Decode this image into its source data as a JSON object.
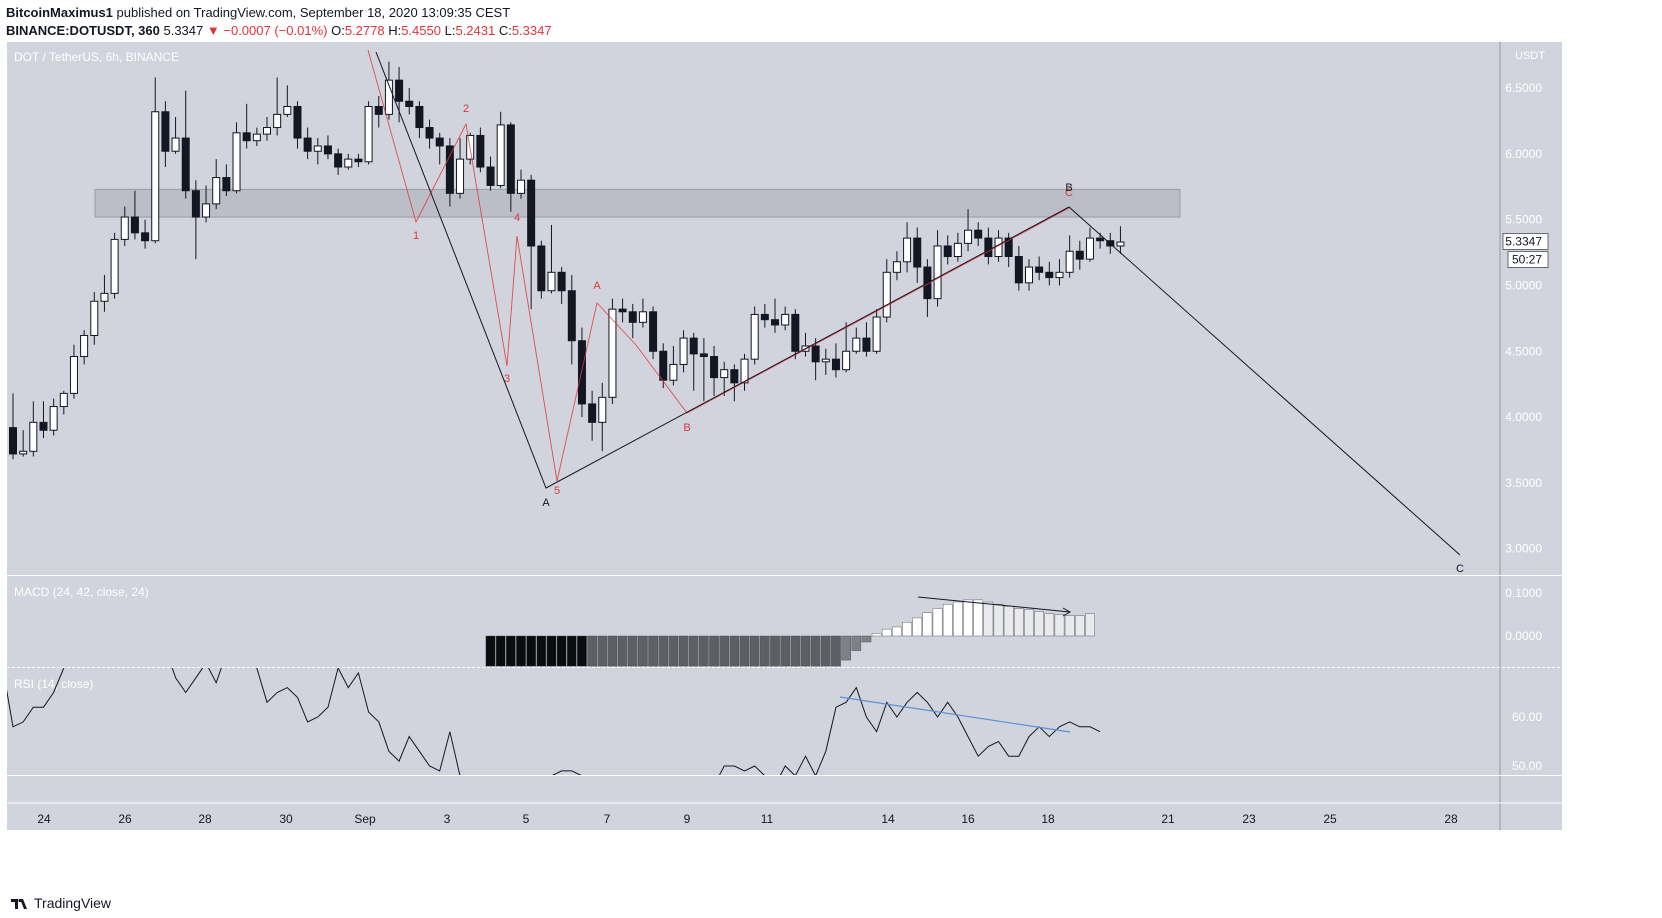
{
  "header": {
    "user": "BitcoinMaximus1",
    "published_text": "published on TradingView.com, September 18, 2020 13:09:35 CEST",
    "symbol": "BINANCE:DOTUSDT, 360",
    "last": "5.3347",
    "arrow": "▼",
    "change": "−0.0007 (−0.01%)",
    "o_label": "O:",
    "o_val": "5.2778",
    "h_label": "H:",
    "h_val": "5.4550",
    "l_label": "L:",
    "l_val": "5.2431",
    "c_label": "C:",
    "c_val": "5.3347"
  },
  "footer": {
    "brand": "TradingView"
  },
  "colors": {
    "background": "#d1d4dc",
    "candle_up": "#ffffff",
    "candle_down": "#131722",
    "wave_red": "#e0343c",
    "rsi_trend": "#5b8fe0"
  },
  "chart_data": {
    "type": "candlestick",
    "title": "DOT / TetherUS, 6h, BINANCE",
    "y_unit": "USDT",
    "x_ticks": [
      "24",
      "26",
      "28",
      "30",
      "Sep",
      "3",
      "5",
      "7",
      "9",
      "11",
      "14",
      "16",
      "18",
      "21",
      "23",
      "25",
      "28"
    ],
    "ylim": [
      2.8,
      6.85
    ],
    "y_ticks": [
      "6.5000",
      "6.0000",
      "5.5000",
      "5.0000",
      "4.5000",
      "4.0000",
      "3.5000",
      "3.0000"
    ],
    "price_label": "5.3347",
    "countdown": "50:27",
    "resistance_zone": [
      5.52,
      5.73
    ],
    "candles": [
      [
        3.92,
        3.72,
        4.18,
        3.68
      ],
      [
        3.72,
        3.74,
        3.9,
        3.7
      ],
      [
        3.74,
        3.96,
        4.12,
        3.7
      ],
      [
        3.96,
        3.9,
        4.12,
        3.84
      ],
      [
        3.9,
        4.08,
        4.14,
        3.86
      ],
      [
        4.08,
        4.18,
        4.2,
        4.02
      ],
      [
        4.18,
        4.46,
        4.55,
        4.14
      ],
      [
        4.46,
        4.62,
        4.66,
        4.4
      ],
      [
        4.62,
        4.88,
        4.95,
        4.55
      ],
      [
        4.88,
        4.94,
        5.08,
        4.8
      ],
      [
        4.94,
        5.35,
        5.4,
        4.9
      ],
      [
        5.35,
        5.52,
        5.6,
        5.3
      ],
      [
        5.52,
        5.4,
        5.72,
        5.35
      ],
      [
        5.4,
        5.34,
        5.5,
        5.28
      ],
      [
        5.34,
        6.32,
        6.58,
        5.32
      ],
      [
        6.32,
        6.02,
        6.4,
        5.9
      ],
      [
        6.02,
        6.12,
        6.28,
        6.0
      ],
      [
        6.12,
        5.72,
        6.48,
        5.66
      ],
      [
        5.72,
        5.52,
        5.8,
        5.2
      ],
      [
        5.52,
        5.62,
        5.76,
        5.48
      ],
      [
        5.62,
        5.82,
        5.96,
        5.58
      ],
      [
        5.82,
        5.72,
        5.92,
        5.68
      ],
      [
        5.72,
        6.16,
        6.24,
        5.7
      ],
      [
        6.16,
        6.1,
        6.38,
        6.04
      ],
      [
        6.1,
        6.15,
        6.2,
        6.06
      ],
      [
        6.15,
        6.2,
        6.28,
        6.1
      ],
      [
        6.2,
        6.3,
        6.58,
        6.14
      ],
      [
        6.3,
        6.36,
        6.52,
        6.28
      ],
      [
        6.36,
        6.12,
        6.4,
        6.04
      ],
      [
        6.12,
        6.02,
        6.2,
        5.96
      ],
      [
        6.02,
        6.06,
        6.12,
        5.92
      ],
      [
        6.06,
        6.0,
        6.14,
        5.96
      ],
      [
        6.0,
        5.9,
        6.04,
        5.84
      ],
      [
        5.9,
        5.96,
        6.0,
        5.88
      ],
      [
        5.96,
        5.94,
        6.0,
        5.9
      ],
      [
        5.94,
        6.36,
        6.4,
        5.92
      ],
      [
        6.36,
        6.3,
        6.44,
        6.2
      ],
      [
        6.3,
        6.56,
        6.7,
        6.26
      ],
      [
        6.56,
        6.4,
        6.66,
        6.24
      ],
      [
        6.4,
        6.36,
        6.5,
        6.3
      ],
      [
        6.36,
        6.2,
        6.4,
        6.12
      ],
      [
        6.2,
        6.12,
        6.26,
        6.04
      ],
      [
        6.12,
        6.06,
        6.16,
        5.92
      ],
      [
        6.06,
        5.7,
        6.12,
        5.6
      ],
      [
        5.7,
        5.96,
        6.12,
        5.66
      ],
      [
        5.96,
        6.14,
        6.16,
        5.92
      ],
      [
        6.14,
        5.9,
        6.2,
        5.86
      ],
      [
        5.9,
        5.76,
        5.98,
        5.72
      ],
      [
        5.76,
        6.22,
        6.32,
        5.74
      ],
      [
        6.22,
        5.7,
        6.24,
        5.56
      ],
      [
        5.7,
        5.8,
        5.88,
        5.66
      ],
      [
        5.8,
        5.3,
        5.84,
        4.82
      ],
      [
        5.3,
        4.96,
        5.34,
        4.9
      ],
      [
        4.96,
        5.1,
        5.46,
        4.94
      ],
      [
        5.1,
        4.96,
        5.14,
        4.86
      ],
      [
        4.96,
        4.58,
        5.08,
        4.4
      ],
      [
        4.58,
        4.1,
        4.68,
        4.0
      ],
      [
        4.1,
        3.96,
        4.2,
        3.82
      ],
      [
        3.96,
        4.15,
        4.26,
        3.74
      ],
      [
        4.15,
        4.82,
        4.9,
        4.1
      ],
      [
        4.82,
        4.8,
        4.9,
        4.72
      ],
      [
        4.8,
        4.72,
        4.86,
        4.6
      ],
      [
        4.72,
        4.8,
        4.9,
        4.68
      ],
      [
        4.8,
        4.5,
        4.84,
        4.44
      ],
      [
        4.5,
        4.28,
        4.56,
        4.22
      ],
      [
        4.28,
        4.4,
        4.54,
        4.24
      ],
      [
        4.4,
        4.6,
        4.66,
        4.34
      ],
      [
        4.6,
        4.48,
        4.64,
        4.2
      ],
      [
        4.48,
        4.46,
        4.6,
        4.12
      ],
      [
        4.46,
        4.3,
        4.54,
        4.16
      ],
      [
        4.3,
        4.36,
        4.42,
        4.16
      ],
      [
        4.36,
        4.26,
        4.4,
        4.12
      ],
      [
        4.26,
        4.44,
        4.48,
        4.2
      ],
      [
        4.44,
        4.78,
        4.84,
        4.4
      ],
      [
        4.78,
        4.74,
        4.86,
        4.68
      ],
      [
        4.74,
        4.7,
        4.9,
        4.64
      ],
      [
        4.7,
        4.78,
        4.84,
        4.66
      ],
      [
        4.78,
        4.5,
        4.82,
        4.44
      ],
      [
        4.5,
        4.54,
        4.64,
        4.46
      ],
      [
        4.54,
        4.42,
        4.6,
        4.28
      ],
      [
        4.42,
        4.44,
        4.52,
        4.32
      ],
      [
        4.44,
        4.36,
        4.56,
        4.3
      ],
      [
        4.36,
        4.5,
        4.72,
        4.34
      ],
      [
        4.5,
        4.6,
        4.68,
        4.48
      ],
      [
        4.6,
        4.5,
        4.72,
        4.46
      ],
      [
        4.5,
        4.76,
        4.82,
        4.48
      ],
      [
        4.76,
        5.1,
        5.2,
        4.72
      ],
      [
        5.1,
        5.18,
        5.26,
        5.04
      ],
      [
        5.18,
        5.36,
        5.48,
        5.1
      ],
      [
        5.36,
        5.14,
        5.44,
        5.02
      ],
      [
        5.14,
        4.9,
        5.2,
        4.76
      ],
      [
        4.9,
        5.3,
        5.42,
        4.84
      ],
      [
        5.3,
        5.22,
        5.38,
        5.16
      ],
      [
        5.22,
        5.32,
        5.4,
        5.18
      ],
      [
        5.32,
        5.42,
        5.58,
        5.26
      ],
      [
        5.42,
        5.36,
        5.48,
        5.3
      ],
      [
        5.36,
        5.22,
        5.44,
        5.16
      ],
      [
        5.22,
        5.36,
        5.42,
        5.18
      ],
      [
        5.36,
        5.22,
        5.4,
        5.14
      ],
      [
        5.22,
        5.02,
        5.3,
        4.96
      ],
      [
        5.02,
        5.14,
        5.2,
        4.96
      ],
      [
        5.14,
        5.1,
        5.22,
        5.04
      ],
      [
        5.1,
        5.06,
        5.18,
        5.0
      ],
      [
        5.06,
        5.1,
        5.2,
        5.0
      ],
      [
        5.1,
        5.26,
        5.38,
        5.06
      ],
      [
        5.26,
        5.2,
        5.34,
        5.12
      ],
      [
        5.2,
        5.36,
        5.44,
        5.18
      ],
      [
        5.36,
        5.34,
        5.4,
        5.28
      ],
      [
        5.34,
        5.3,
        5.4,
        5.24
      ],
      [
        5.3,
        5.33,
        5.45,
        5.24
      ]
    ],
    "wave_labels": [
      {
        "text": "1",
        "color": "red",
        "x": 416,
        "y": 239
      },
      {
        "text": "2",
        "color": "red",
        "x": 466,
        "y": 112
      },
      {
        "text": "3",
        "color": "red",
        "x": 507,
        "y": 382
      },
      {
        "text": "4",
        "color": "red",
        "x": 517,
        "y": 221
      },
      {
        "text": "5",
        "color": "red",
        "x": 557,
        "y": 494
      },
      {
        "text": "A",
        "color": "red",
        "x": 597,
        "y": 289
      },
      {
        "text": "B",
        "color": "red",
        "x": 687,
        "y": 431
      },
      {
        "text": "C",
        "color": "red",
        "x": 1069,
        "y": 196
      },
      {
        "text": "A",
        "color": "dark",
        "x": 546,
        "y": 506
      },
      {
        "text": "B",
        "color": "dark",
        "x": 1069,
        "y": 191
      },
      {
        "text": "C",
        "color": "dark",
        "x": 1460,
        "y": 572
      }
    ],
    "macd": {
      "title": "MACD (24, 42, close, 24)",
      "y_ticks": [
        "0.1000",
        "0.0000"
      ],
      "histogram_start": 47,
      "histogram": [
        -0.07,
        -0.07,
        -0.07,
        -0.07,
        -0.07,
        -0.07,
        -0.07,
        -0.07,
        -0.07,
        -0.07,
        -0.07,
        -0.07,
        -0.07,
        -0.07,
        -0.07,
        -0.07,
        -0.07,
        -0.07,
        -0.07,
        -0.07,
        -0.07,
        -0.07,
        -0.07,
        -0.07,
        -0.07,
        -0.07,
        -0.07,
        -0.07,
        -0.07,
        -0.07,
        -0.07,
        -0.07,
        -0.07,
        -0.07,
        -0.07,
        -0.056,
        -0.034,
        -0.014,
        0.006,
        0.016,
        0.021,
        0.032,
        0.042,
        0.054,
        0.064,
        0.074,
        0.079,
        0.084,
        0.084,
        0.079,
        0.074,
        0.069,
        0.064,
        0.062,
        0.057,
        0.052,
        0.05,
        0.047,
        0.047,
        0.052
      ]
    },
    "rsi": {
      "title": "RSI (14, close)",
      "y_ticks": [
        "60.00",
        "50.00"
      ],
      "values": [
        70,
        58,
        59,
        62,
        62,
        65,
        70,
        75,
        78,
        80,
        82,
        84,
        86,
        88,
        88,
        88,
        74,
        68,
        65,
        68,
        71,
        67,
        73,
        73,
        74,
        70,
        63,
        65,
        66,
        64,
        59,
        60,
        62,
        70,
        66,
        69,
        61,
        59,
        53,
        51,
        56,
        53,
        50,
        49,
        57,
        48,
        43,
        40,
        38,
        39,
        40,
        42,
        44,
        46,
        48,
        49,
        49,
        48,
        46,
        44,
        43,
        42,
        42,
        43,
        43,
        43,
        42,
        43,
        44,
        45,
        46,
        50,
        50,
        49,
        50,
        48,
        46,
        50,
        48,
        52,
        48,
        53,
        62,
        63,
        66,
        60,
        57,
        63,
        60,
        63,
        65,
        63,
        60,
        63,
        60,
        56,
        52,
        54,
        55,
        52,
        52,
        56,
        58,
        56,
        58,
        59,
        58,
        58,
        57
      ],
      "trend": [
        [
          840,
          697
        ],
        [
          1070,
          732
        ]
      ]
    },
    "macd_trend": [
      [
        918,
        597
      ],
      [
        1070,
        612
      ]
    ]
  }
}
